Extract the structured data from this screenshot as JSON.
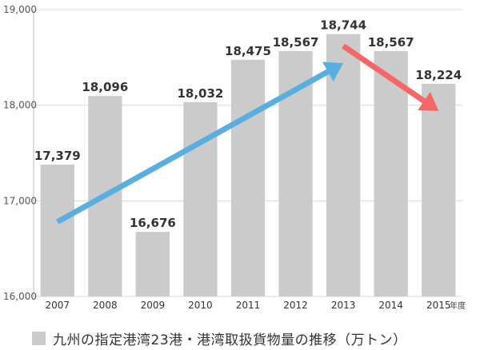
{
  "chart_data": {
    "type": "bar",
    "categories": [
      "2007",
      "2008",
      "2009",
      "2010",
      "2011",
      "2012",
      "2013",
      "2014",
      "2015"
    ],
    "values": [
      17379,
      18096,
      16676,
      18032,
      18475,
      18567,
      18744,
      18567,
      18224
    ],
    "value_labels": [
      "17,379",
      "18,096",
      "16,676",
      "18,032",
      "18,475",
      "18,567",
      "18,744",
      "18,567",
      "18,224"
    ],
    "ylim": [
      16000,
      19000
    ],
    "yticks": [
      16000,
      17000,
      18000,
      19000
    ],
    "ytick_labels": [
      "16,000",
      "17,000",
      "18,000",
      "19,000"
    ],
    "x_unit": "年度",
    "grid": true,
    "legend_position": "bottom",
    "series": [
      {
        "name": "九州の指定港湾23港・港湾取扱貨物量の推移（万トン）",
        "color": "#cbcbcb"
      }
    ],
    "annotations": [
      {
        "type": "trend-arrow",
        "color": "#5aafe1",
        "from": [
          2007,
          16780
        ],
        "to": [
          2013,
          18440
        ]
      },
      {
        "type": "trend-arrow",
        "color": "#f76666",
        "from": [
          2013,
          18620
        ],
        "to": [
          2015,
          17940
        ]
      }
    ]
  }
}
